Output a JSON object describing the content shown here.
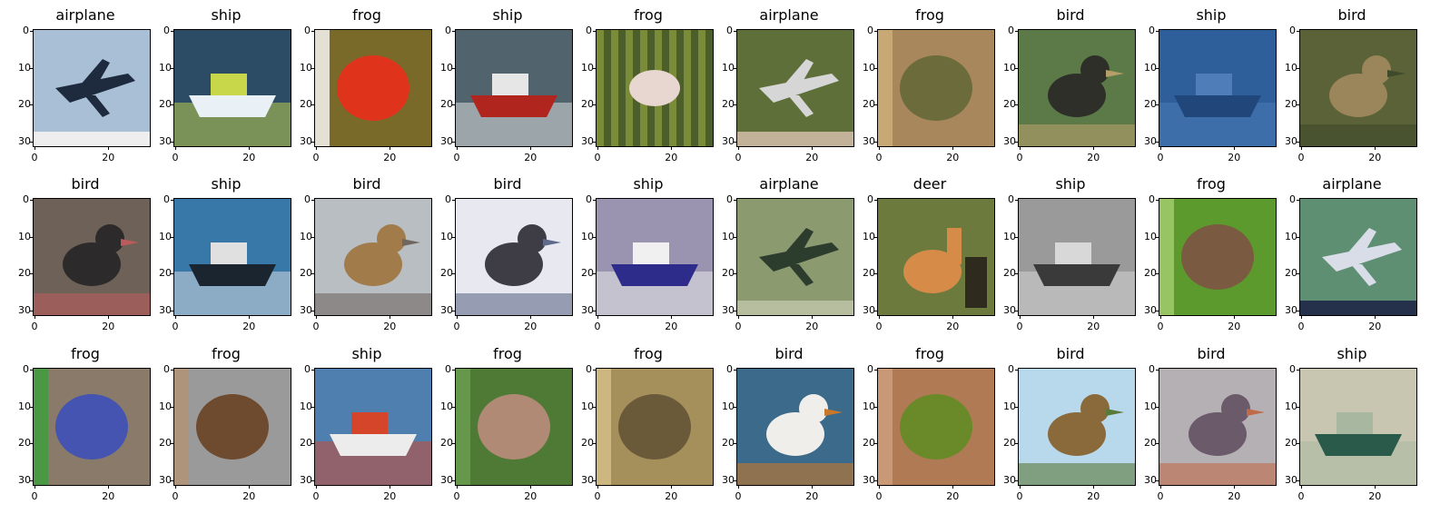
{
  "figure": {
    "y_ticks": [
      "0",
      "10",
      "20",
      "30"
    ],
    "x_ticks": [
      "0",
      "20"
    ],
    "panels": [
      {
        "title": "airplane",
        "bg": "#a8bfd6",
        "fg": "#1e2a3d",
        "accent": "#eeeeee",
        "shape": "plane"
      },
      {
        "title": "ship",
        "bg": "#2c4c66",
        "fg": "#e9f1f6",
        "accent": "#c8d64a",
        "shape": "boat"
      },
      {
        "title": "frog",
        "bg": "#7a6a2a",
        "fg": "#e0331c",
        "accent": "#ffffff",
        "shape": "blob"
      },
      {
        "title": "ship",
        "bg": "#51646e",
        "fg": "#b0261e",
        "accent": "#e6e6e6",
        "shape": "boat"
      },
      {
        "title": "frog",
        "bg": "#4c5f2b",
        "fg": "#e8d6d0",
        "accent": "#8ea03d",
        "shape": "stripes"
      },
      {
        "title": "airplane",
        "bg": "#5f6f3a",
        "fg": "#d6d6d6",
        "accent": "#c2b29a",
        "shape": "plane"
      },
      {
        "title": "frog",
        "bg": "#a8875c",
        "fg": "#6b6b3c",
        "accent": "#d0b07a",
        "shape": "blob"
      },
      {
        "title": "bird",
        "bg": "#5c7a48",
        "fg": "#2f2f2a",
        "accent": "#b59e6a",
        "shape": "bird"
      },
      {
        "title": "ship",
        "bg": "#2f5f9a",
        "fg": "#21467a",
        "accent": "#4e7db8",
        "shape": "boat"
      },
      {
        "title": "bird",
        "bg": "#5b6237",
        "fg": "#9b855b",
        "accent": "#3f4a2b",
        "shape": "bird"
      },
      {
        "title": "bird",
        "bg": "#6e6258",
        "fg": "#2c2a2a",
        "accent": "#bb5b5b",
        "shape": "bird"
      },
      {
        "title": "ship",
        "bg": "#3778a9",
        "fg": "#1b2530",
        "accent": "#e0e0e0",
        "shape": "boat"
      },
      {
        "title": "bird",
        "bg": "#b8bec2",
        "fg": "#a27b4b",
        "accent": "#6f6660",
        "shape": "bird"
      },
      {
        "title": "bird",
        "bg": "#e8e8f0",
        "fg": "#3e3d45",
        "accent": "#5f6a8a",
        "shape": "bird"
      },
      {
        "title": "ship",
        "bg": "#9a94b0",
        "fg": "#2d2c8a",
        "accent": "#f0f0f0",
        "shape": "boat"
      },
      {
        "title": "airplane",
        "bg": "#8c9a70",
        "fg": "#2d3d2d",
        "accent": "#b7bea0",
        "shape": "plane"
      },
      {
        "title": "deer",
        "bg": "#6d7a3d",
        "fg": "#d68c48",
        "accent": "#2e2a1e",
        "shape": "deer"
      },
      {
        "title": "ship",
        "bg": "#9a9a9a",
        "fg": "#3a3a3a",
        "accent": "#d8d8d8",
        "shape": "boat"
      },
      {
        "title": "frog",
        "bg": "#5d9a2e",
        "fg": "#7a5a40",
        "accent": "#a8d070",
        "shape": "blob"
      },
      {
        "title": "airplane",
        "bg": "#5f8f72",
        "fg": "#d8dde8",
        "accent": "#25304a",
        "shape": "plane"
      },
      {
        "title": "frog",
        "bg": "#8a7a6a",
        "fg": "#4454b0",
        "accent": "#3aa03a",
        "shape": "blob"
      },
      {
        "title": "frog",
        "bg": "#9a9a9a",
        "fg": "#6e4a2e",
        "accent": "#b49274",
        "shape": "blob"
      },
      {
        "title": "ship",
        "bg": "#4e7fae",
        "fg": "#ececec",
        "accent": "#d5452a",
        "shape": "boat"
      },
      {
        "title": "frog",
        "bg": "#4f7a35",
        "fg": "#b08a75",
        "accent": "#6aa050",
        "shape": "blob"
      },
      {
        "title": "frog",
        "bg": "#a58f5a",
        "fg": "#6a5a3a",
        "accent": "#d6c08a",
        "shape": "blob"
      },
      {
        "title": "bird",
        "bg": "#3b6a8a",
        "fg": "#f0eeea",
        "accent": "#c8782a",
        "shape": "bird"
      },
      {
        "title": "frog",
        "bg": "#b07a55",
        "fg": "#6a8a2a",
        "accent": "#d0a080",
        "shape": "blob"
      },
      {
        "title": "bird",
        "bg": "#b8d8ec",
        "fg": "#8a6a3a",
        "accent": "#5a7a3a",
        "shape": "bird"
      },
      {
        "title": "bird",
        "bg": "#b4b0b4",
        "fg": "#6a5a6a",
        "accent": "#c06a4a",
        "shape": "bird"
      },
      {
        "title": "ship",
        "bg": "#c8c6b0",
        "fg": "#2a5a4a",
        "accent": "#a8b8a0",
        "shape": "boat"
      }
    ]
  }
}
